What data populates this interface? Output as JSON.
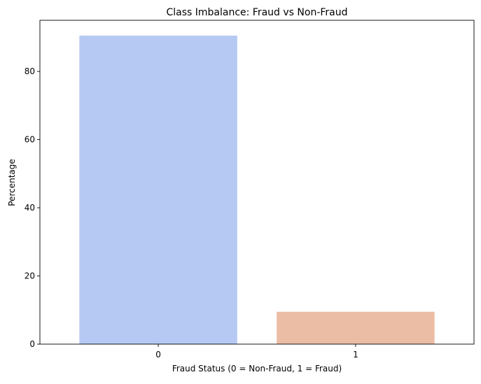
{
  "chart_data": {
    "type": "bar",
    "title": "Class Imbalance: Fraud vs Non-Fraud",
    "xlabel": "Fraud Status (0 = Non-Fraud, 1 = Fraud)",
    "ylabel": "Percentage",
    "categories": [
      "0",
      "1"
    ],
    "values": [
      90.5,
      9.5
    ],
    "colors": [
      "#b5c9f3",
      "#ecbda5"
    ],
    "ylim": [
      0,
      95
    ],
    "yticks": [
      0,
      20,
      40,
      60,
      80
    ],
    "grid": false,
    "legend": "none"
  }
}
